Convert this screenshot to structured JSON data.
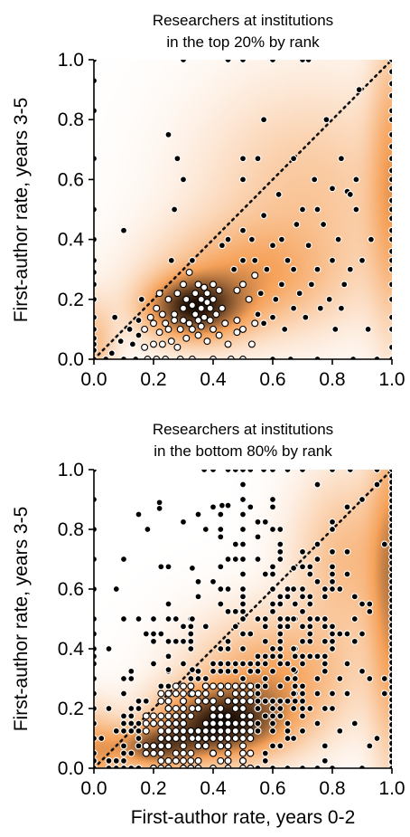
{
  "chart_data": [
    {
      "type": "scatter",
      "title": "Researchers at institutions in the top 20% by rank",
      "title_lines": [
        "Researchers at institutions",
        "in the top 20% by rank"
      ],
      "xlabel": "",
      "ylabel": "First-author rate, years 3-5",
      "xlim": [
        0,
        1
      ],
      "ylim": [
        0,
        1
      ],
      "x_ticks": [
        "0.0",
        "0.2",
        "0.4",
        "0.6",
        "0.8",
        "1.0"
      ],
      "y_ticks": [
        "0.0",
        "0.2",
        "0.4",
        "0.6",
        "0.8",
        "1.0"
      ],
      "grid": false,
      "reference_line": "y = x (dotted)",
      "density_colormap": [
        "#ffffff",
        "#f6a25a",
        "#1a0c04"
      ],
      "density_centers": [
        {
          "x": 0.33,
          "y": 0.17,
          "sx": 0.11,
          "sy": 0.07,
          "w": 1.0
        },
        {
          "x": 0.5,
          "y": 0.27,
          "sx": 0.2,
          "sy": 0.12,
          "w": 0.45
        },
        {
          "x": 1.0,
          "y": 0.6,
          "sx": 0.05,
          "sy": 0.35,
          "w": 0.45
        },
        {
          "x": 0.0,
          "y": 0.05,
          "sx": 0.05,
          "sy": 0.1,
          "w": 0.35
        },
        {
          "x": 0.72,
          "y": 0.55,
          "sx": 0.25,
          "sy": 0.25,
          "w": 0.3
        }
      ],
      "points": [
        [
          0.0,
          1.0
        ],
        [
          0.0,
          0.93
        ],
        [
          0.0,
          0.83
        ],
        [
          0.0,
          0.67
        ],
        [
          0.0,
          0.5
        ],
        [
          0.0,
          0.4
        ],
        [
          0.0,
          0.33
        ],
        [
          0.0,
          0.29
        ],
        [
          0.0,
          0.25
        ],
        [
          0.0,
          0.2
        ],
        [
          0.0,
          0.14
        ],
        [
          0.0,
          0.1
        ],
        [
          0.0,
          0.07
        ],
        [
          0.0,
          0.05
        ],
        [
          0.0,
          0.03
        ],
        [
          0.0,
          0.0
        ],
        [
          0.04,
          0.0
        ],
        [
          0.06,
          0.02
        ],
        [
          0.07,
          0.14
        ],
        [
          0.09,
          0.06
        ],
        [
          0.1,
          0.43
        ],
        [
          0.1,
          0.0
        ],
        [
          0.12,
          0.1
        ],
        [
          0.13,
          0.05
        ],
        [
          0.14,
          0.0
        ],
        [
          0.15,
          0.13
        ],
        [
          0.15,
          0.08
        ],
        [
          0.16,
          0.2
        ],
        [
          0.17,
          0.04
        ],
        [
          0.17,
          0.1
        ],
        [
          0.18,
          0.0
        ],
        [
          0.19,
          0.14
        ],
        [
          0.2,
          0.05
        ],
        [
          0.2,
          0.12
        ],
        [
          0.21,
          0.17
        ],
        [
          0.21,
          0.0
        ],
        [
          0.22,
          0.22
        ],
        [
          0.22,
          0.09
        ],
        [
          0.23,
          0.15
        ],
        [
          0.23,
          0.05
        ],
        [
          0.24,
          0.12
        ],
        [
          0.24,
          0.0
        ],
        [
          0.25,
          0.2
        ],
        [
          0.25,
          0.75
        ],
        [
          0.25,
          0.1
        ],
        [
          0.26,
          0.33
        ],
        [
          0.26,
          0.06
        ],
        [
          0.27,
          0.15
        ],
        [
          0.27,
          0.13
        ],
        [
          0.27,
          0.5
        ],
        [
          0.28,
          0.67
        ],
        [
          0.28,
          0.04
        ],
        [
          0.28,
          0.22
        ],
        [
          0.29,
          0.1
        ],
        [
          0.29,
          0.0
        ],
        [
          0.3,
          0.17
        ],
        [
          0.3,
          0.13
        ],
        [
          0.3,
          0.6
        ],
        [
          0.3,
          0.25
        ],
        [
          0.31,
          0.07
        ],
        [
          0.31,
          0.2
        ],
        [
          0.32,
          0.12
        ],
        [
          0.32,
          0.29
        ],
        [
          0.33,
          0.18
        ],
        [
          0.33,
          0.1
        ],
        [
          0.33,
          0.33
        ],
        [
          0.33,
          0.0
        ],
        [
          0.34,
          0.15
        ],
        [
          0.34,
          0.22
        ],
        [
          0.35,
          0.13
        ],
        [
          0.35,
          0.08
        ],
        [
          0.35,
          0.25
        ],
        [
          0.36,
          0.17
        ],
        [
          0.36,
          0.2
        ],
        [
          0.36,
          0.11
        ],
        [
          0.37,
          0.24
        ],
        [
          0.37,
          0.14
        ],
        [
          0.38,
          0.19
        ],
        [
          0.38,
          0.06
        ],
        [
          0.38,
          0.22
        ],
        [
          0.39,
          0.13
        ],
        [
          0.39,
          0.17
        ],
        [
          0.4,
          0.25
        ],
        [
          0.4,
          0.1
        ],
        [
          0.4,
          0.2
        ],
        [
          0.4,
          0.0
        ],
        [
          0.41,
          0.15
        ],
        [
          0.42,
          0.23
        ],
        [
          0.42,
          0.08
        ],
        [
          0.43,
          0.38
        ],
        [
          0.43,
          0.17
        ],
        [
          0.44,
          0.12
        ],
        [
          0.45,
          0.4
        ],
        [
          0.45,
          0.05
        ],
        [
          0.46,
          0.0
        ],
        [
          0.47,
          0.3
        ],
        [
          0.48,
          0.13
        ],
        [
          0.48,
          0.23
        ],
        [
          0.5,
          0.25
        ],
        [
          0.5,
          0.0
        ],
        [
          0.5,
          0.6
        ],
        [
          0.5,
          0.43
        ],
        [
          0.5,
          0.67
        ],
        [
          0.5,
          0.1
        ],
        [
          0.5,
          0.33
        ],
        [
          0.3,
          1.0
        ],
        [
          0.45,
          1.0
        ],
        [
          0.52,
          0.2
        ],
        [
          0.53,
          0.4
        ],
        [
          0.53,
          0.05
        ],
        [
          0.54,
          0.33
        ],
        [
          0.54,
          0.28
        ],
        [
          0.55,
          0.67
        ],
        [
          0.55,
          0.15
        ],
        [
          0.56,
          0.22
        ],
        [
          0.57,
          0.12
        ],
        [
          0.57,
          0.8
        ],
        [
          0.57,
          0.48
        ],
        [
          0.58,
          0.3
        ],
        [
          0.6,
          0.14
        ],
        [
          0.6,
          0.38
        ],
        [
          0.6,
          0.0
        ],
        [
          0.6,
          1.0
        ],
        [
          0.61,
          0.2
        ],
        [
          0.62,
          0.55
        ],
        [
          0.63,
          0.25
        ],
        [
          0.63,
          0.4
        ],
        [
          0.64,
          0.1
        ],
        [
          0.65,
          0.33
        ],
        [
          0.66,
          0.0
        ],
        [
          0.67,
          0.67
        ],
        [
          0.67,
          0.17
        ],
        [
          0.67,
          0.3
        ],
        [
          0.68,
          0.45
        ],
        [
          0.69,
          0.22
        ],
        [
          0.7,
          0.5
        ],
        [
          0.7,
          1.0
        ],
        [
          0.71,
          0.14
        ],
        [
          0.72,
          0.38
        ],
        [
          0.72,
          1.0
        ],
        [
          0.73,
          0.25
        ],
        [
          0.74,
          0.6
        ],
        [
          0.75,
          0.0
        ],
        [
          0.75,
          0.5
        ],
        [
          0.75,
          0.3
        ],
        [
          0.76,
          0.17
        ],
        [
          0.77,
          0.45
        ],
        [
          0.78,
          0.8
        ],
        [
          0.79,
          0.2
        ],
        [
          0.8,
          0.33
        ],
        [
          0.8,
          0.57
        ],
        [
          0.81,
          0.1
        ],
        [
          0.82,
          0.4
        ],
        [
          0.83,
          0.67
        ],
        [
          0.83,
          0.17
        ],
        [
          0.84,
          0.25
        ],
        [
          0.85,
          0.56
        ],
        [
          0.86,
          0.3
        ],
        [
          0.86,
          0.55
        ],
        [
          0.87,
          0.0
        ],
        [
          0.88,
          0.5
        ],
        [
          0.88,
          0.6
        ],
        [
          0.89,
          0.9
        ],
        [
          0.9,
          0.33
        ],
        [
          0.92,
          0.1
        ],
        [
          0.93,
          0.4
        ],
        [
          0.95,
          0.0
        ],
        [
          0.5,
          1.0
        ],
        [
          0.54,
          0.12
        ],
        [
          0.48,
          0.09
        ],
        [
          1.0,
          1.0
        ],
        [
          1.0,
          0.96
        ],
        [
          1.0,
          0.92
        ],
        [
          1.0,
          0.88
        ],
        [
          1.0,
          0.83
        ],
        [
          1.0,
          0.8
        ],
        [
          1.0,
          0.75
        ],
        [
          1.0,
          0.71
        ],
        [
          1.0,
          0.67
        ],
        [
          1.0,
          0.63
        ],
        [
          1.0,
          0.6
        ],
        [
          1.0,
          0.57
        ],
        [
          1.0,
          0.53
        ],
        [
          1.0,
          0.5
        ],
        [
          1.0,
          0.47
        ],
        [
          1.0,
          0.43
        ],
        [
          1.0,
          0.4
        ],
        [
          1.0,
          0.36
        ],
        [
          1.0,
          0.33
        ],
        [
          1.0,
          0.3
        ],
        [
          1.0,
          0.25
        ],
        [
          1.0,
          0.2
        ],
        [
          1.0,
          0.14
        ],
        [
          1.0,
          0.1
        ],
        [
          1.0,
          0.04
        ],
        [
          1.0,
          0.0
        ]
      ]
    },
    {
      "type": "scatter",
      "title": "Researchers at institutions in the bottom 80% by rank",
      "title_lines": [
        "Researchers at institutions",
        "in the bottom 80% by rank"
      ],
      "xlabel": "First-author rate, years 0-2",
      "ylabel": "First-author rate, years 3-5",
      "xlim": [
        0,
        1
      ],
      "ylim": [
        0,
        1
      ],
      "x_ticks": [
        "0.0",
        "0.2",
        "0.4",
        "0.6",
        "0.8",
        "1.0"
      ],
      "y_ticks": [
        "0.0",
        "0.2",
        "0.4",
        "0.6",
        "0.8",
        "1.0"
      ],
      "grid": false,
      "reference_line": "y = x (dotted)",
      "density_colormap": [
        "#ffffff",
        "#f6a25a",
        "#1a0c04"
      ],
      "density_centers": [
        {
          "x": 0.42,
          "y": 0.15,
          "sx": 0.14,
          "sy": 0.08,
          "w": 1.0
        },
        {
          "x": 0.2,
          "y": 0.07,
          "sx": 0.1,
          "sy": 0.05,
          "w": 0.75
        },
        {
          "x": 0.6,
          "y": 0.3,
          "sx": 0.18,
          "sy": 0.14,
          "w": 0.5
        },
        {
          "x": 1.0,
          "y": 0.6,
          "sx": 0.05,
          "sy": 0.4,
          "w": 0.55
        },
        {
          "x": 0.85,
          "y": 0.7,
          "sx": 0.12,
          "sy": 0.2,
          "w": 0.35
        },
        {
          "x": 0.0,
          "y": 0.05,
          "sx": 0.06,
          "sy": 0.1,
          "w": 0.45
        }
      ],
      "cloud": {
        "seed": 7,
        "groups": [
          {
            "n": 230,
            "x": 0.33,
            "y": 0.12,
            "sx": 0.14,
            "sy": 0.07
          },
          {
            "n": 140,
            "x": 0.55,
            "y": 0.28,
            "sx": 0.17,
            "sy": 0.13
          },
          {
            "n": 90,
            "x": 0.75,
            "y": 0.52,
            "sx": 0.13,
            "sy": 0.16
          },
          {
            "n": 60,
            "x": 0.3,
            "y": 0.35,
            "sx": 0.14,
            "sy": 0.14
          },
          {
            "n": 40,
            "x": 0.45,
            "y": 0.7,
            "sx": 0.15,
            "sy": 0.17
          }
        ]
      },
      "points": [
        [
          0.22,
          0.89
        ],
        [
          0.22,
          0.87
        ],
        [
          0.15,
          0.85
        ],
        [
          0.18,
          0.8
        ],
        [
          0.37,
          1.0
        ],
        [
          0.4,
          1.0
        ],
        [
          0.45,
          1.0
        ],
        [
          0.5,
          1.0
        ],
        [
          0.57,
          1.0
        ],
        [
          0.6,
          1.0
        ],
        [
          0.65,
          1.0
        ],
        [
          0.7,
          1.0
        ],
        [
          0.8,
          1.0
        ],
        [
          0.86,
          1.0
        ],
        [
          0.95,
          1.0
        ],
        [
          0.33,
          0.5
        ],
        [
          0.25,
          0.5
        ],
        [
          0.43,
          0.88
        ],
        [
          0.45,
          0.88
        ],
        [
          0.1,
          0.5
        ],
        [
          0.15,
          0.5
        ],
        [
          0.2,
          0.5
        ],
        [
          0.95,
          0.95
        ],
        [
          0.9,
          0.9
        ],
        [
          0.0,
          1.0
        ],
        [
          0.0,
          0.9
        ],
        [
          0.0,
          0.8
        ],
        [
          0.0,
          0.7
        ],
        [
          0.0,
          0.6
        ],
        [
          0.0,
          0.5
        ],
        [
          0.0,
          0.45
        ],
        [
          0.0,
          0.4
        ],
        [
          0.0,
          0.35
        ],
        [
          0.0,
          0.3
        ],
        [
          0.0,
          0.25
        ],
        [
          0.0,
          0.2
        ],
        [
          0.0,
          0.15
        ],
        [
          0.0,
          0.1
        ],
        [
          0.0,
          0.05
        ],
        [
          0.0,
          0.0
        ],
        [
          0.05,
          0.0
        ],
        [
          0.1,
          0.0
        ],
        [
          0.15,
          0.0
        ],
        [
          0.2,
          0.0
        ],
        [
          0.25,
          0.0
        ],
        [
          0.3,
          0.0
        ],
        [
          0.35,
          0.0
        ],
        [
          0.4,
          0.0
        ],
        [
          0.45,
          0.0
        ],
        [
          0.5,
          0.0
        ],
        [
          0.55,
          0.0
        ],
        [
          0.6,
          0.0
        ],
        [
          0.65,
          0.0
        ],
        [
          0.7,
          0.0
        ],
        [
          0.75,
          0.0
        ],
        [
          0.8,
          0.0
        ],
        [
          0.9,
          0.0
        ],
        [
          0.5,
          0.95
        ],
        [
          0.5,
          0.9
        ],
        [
          0.5,
          0.85
        ],
        [
          0.5,
          0.8
        ],
        [
          0.5,
          0.75
        ],
        [
          0.5,
          0.7
        ],
        [
          0.5,
          0.65
        ],
        [
          0.5,
          0.6
        ],
        [
          0.5,
          0.55
        ],
        [
          0.5,
          0.5
        ],
        [
          0.5,
          0.45
        ],
        [
          0.5,
          0.4
        ],
        [
          0.5,
          0.35
        ],
        [
          0.5,
          0.3
        ],
        [
          0.5,
          0.25
        ],
        [
          0.5,
          0.2
        ],
        [
          0.5,
          0.15
        ],
        [
          0.5,
          0.1
        ],
        [
          0.5,
          0.05
        ],
        [
          0.67,
          0.67
        ],
        [
          0.67,
          0.6
        ],
        [
          0.67,
          0.5
        ],
        [
          0.67,
          0.4
        ],
        [
          0.67,
          0.33
        ],
        [
          0.67,
          0.25
        ],
        [
          0.67,
          0.2
        ],
        [
          0.67,
          0.1
        ],
        [
          0.33,
          0.33
        ],
        [
          0.33,
          0.25
        ],
        [
          0.33,
          0.2
        ],
        [
          0.33,
          0.1
        ],
        [
          0.33,
          0.67
        ],
        [
          0.25,
          0.25
        ],
        [
          0.25,
          0.2
        ],
        [
          0.25,
          0.33
        ],
        [
          0.75,
          0.75
        ],
        [
          0.75,
          0.5
        ],
        [
          0.75,
          0.25
        ],
        [
          0.8,
          0.8
        ],
        [
          0.8,
          0.6
        ],
        [
          0.8,
          0.4
        ],
        [
          0.8,
          0.2
        ]
      ],
      "right_edge_ticks": 48
    }
  ]
}
